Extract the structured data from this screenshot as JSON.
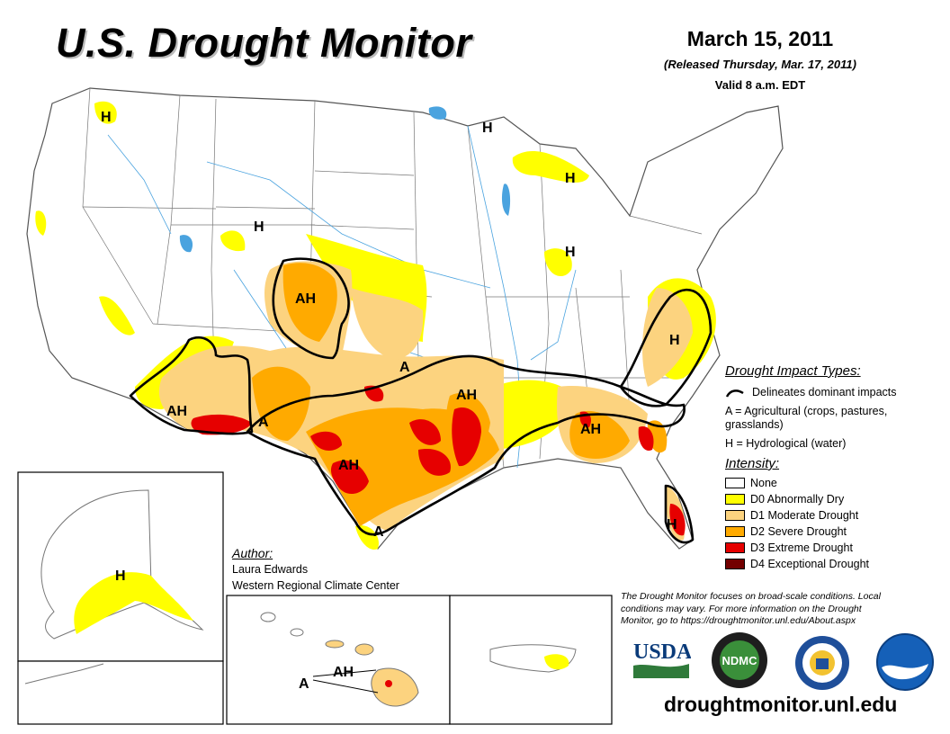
{
  "title": "U.S. Drought Monitor",
  "date": "March 15, 2011",
  "released": "(Released Thursday, Mar. 17, 2011)",
  "valid": "Valid 8 a.m. EDT",
  "colors": {
    "none": "#ffffff",
    "d0": "#ffff00",
    "d1": "#fcd37f",
    "d2": "#ffaa00",
    "d3": "#e60000",
    "d4": "#730000",
    "water": "#4aa3df"
  },
  "impact": {
    "heading": "Drought Impact Types:",
    "line_label": "Delineates dominant impacts",
    "a_label": "A = Agricultural (crops, pastures, grasslands)",
    "h_label": "H = Hydrological (water)"
  },
  "intensity": {
    "heading": "Intensity:",
    "levels": [
      {
        "label": "None",
        "color": "#ffffff"
      },
      {
        "label": "D0 Abnormally Dry",
        "color": "#ffff00"
      },
      {
        "label": "D1 Moderate Drought",
        "color": "#fcd37f"
      },
      {
        "label": "D2 Severe Drought",
        "color": "#ffaa00"
      },
      {
        "label": "D3 Extreme Drought",
        "color": "#e60000"
      },
      {
        "label": "D4 Exceptional Drought",
        "color": "#730000"
      }
    ]
  },
  "author": {
    "heading": "Author:",
    "name": "Laura Edwards",
    "org": "Western Regional Climate Center"
  },
  "note": "The Drought Monitor focuses on broad-scale conditions. Local conditions may vary. For more information on the Drought Monitor, go to https://droughtmonitor.unl.edu/About.aspx",
  "url": "droughtmonitor.unl.edu",
  "map_labels": {
    "h": "H",
    "a": "A",
    "ah": "AH"
  },
  "logos": {
    "usda": "USDA",
    "ndmc": "NDMC"
  }
}
